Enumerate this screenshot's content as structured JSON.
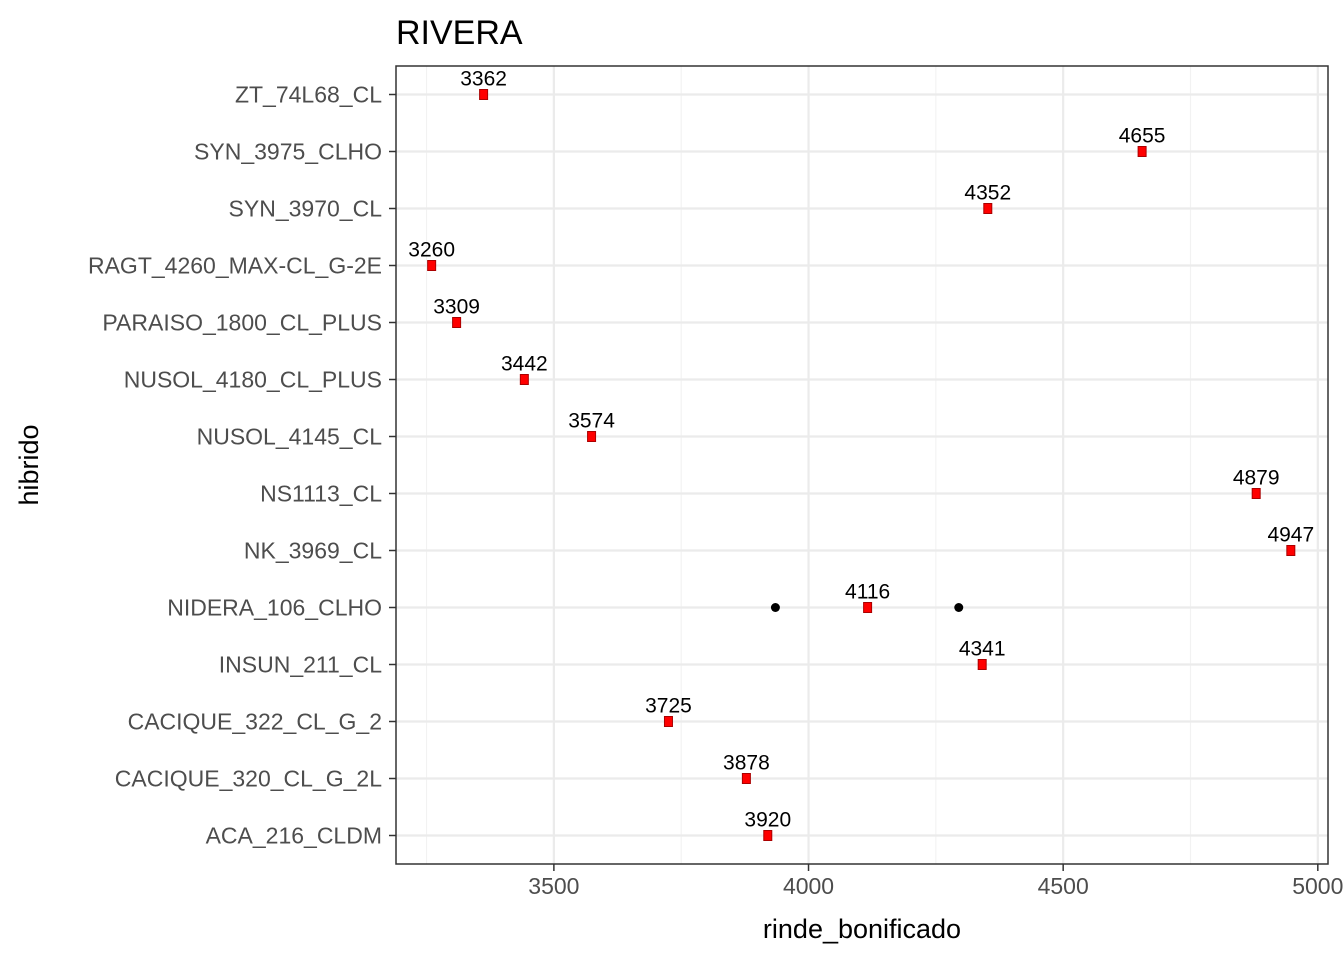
{
  "chart_data": {
    "type": "scatter",
    "title": "RIVERA",
    "xlabel": "rinde_bonificado",
    "ylabel": "hibrido",
    "xlim": [
      3190,
      5020
    ],
    "x_ticks": [
      3500,
      4000,
      4500,
      5000
    ],
    "grid": true,
    "categories": [
      "ACA_216_CLDM",
      "CACIQUE_320_CL_G_2L",
      "CACIQUE_322_CL_G_2",
      "INSUN_211_CL",
      "NIDERA_106_CLHO",
      "NK_3969_CL",
      "NS1113_CL",
      "NUSOL_4145_CL",
      "NUSOL_4180_CL_PLUS",
      "PARAISO_1800_CL_PLUS",
      "RAGT_4260_MAX-CL_G-2E",
      "SYN_3970_CL",
      "SYN_3975_CLHO",
      "ZT_74L68_CL"
    ],
    "points": [
      {
        "hibrido": "ACA_216_CLDM",
        "value": 3920,
        "label": "3920"
      },
      {
        "hibrido": "CACIQUE_320_CL_G_2L",
        "value": 3878,
        "label": "3878"
      },
      {
        "hibrido": "CACIQUE_322_CL_G_2",
        "value": 3725,
        "label": "3725"
      },
      {
        "hibrido": "INSUN_211_CL",
        "value": 4341,
        "label": "4341"
      },
      {
        "hibrido": "NIDERA_106_CLHO",
        "value": 4116,
        "label": "4116"
      },
      {
        "hibrido": "NK_3969_CL",
        "value": 4947,
        "label": "4947"
      },
      {
        "hibrido": "NS1113_CL",
        "value": 4879,
        "label": "4879"
      },
      {
        "hibrido": "NUSOL_4145_CL",
        "value": 3574,
        "label": "3574"
      },
      {
        "hibrido": "NUSOL_4180_CL_PLUS",
        "value": 3442,
        "label": "3442"
      },
      {
        "hibrido": "PARAISO_1800_CL_PLUS",
        "value": 3309,
        "label": "3309"
      },
      {
        "hibrido": "RAGT_4260_MAX-CL_G-2E",
        "value": 3260,
        "label": "3260"
      },
      {
        "hibrido": "SYN_3970_CL",
        "value": 4352,
        "label": "4352"
      },
      {
        "hibrido": "SYN_3975_CLHO",
        "value": 4655,
        "label": "4655"
      },
      {
        "hibrido": "ZT_74L68_CL",
        "value": 3362,
        "label": "3362"
      }
    ],
    "extra_points": [
      {
        "hibrido": "NIDERA_106_CLHO",
        "value": 3935
      },
      {
        "hibrido": "NIDERA_106_CLHO",
        "value": 4295
      }
    ],
    "colors": {
      "main_point": "#ff0000",
      "main_point_outline": "#aa0000",
      "extra_point": "#000000"
    }
  }
}
